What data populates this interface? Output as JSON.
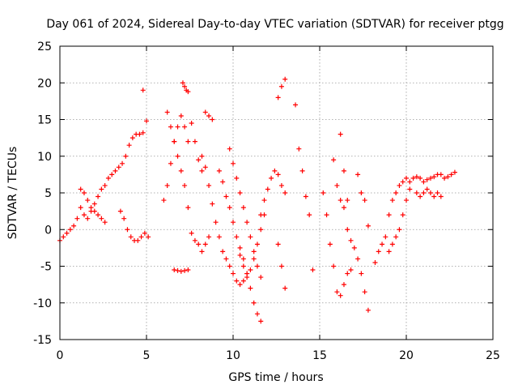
{
  "chart_data": {
    "type": "scatter",
    "title": "Day 061 of 2024, Sidereal Day-to-day VTEC variation (SDTVAR) for receiver ptgg",
    "xlabel": "GPS time / hours",
    "ylabel": "SDTVAR / TECUs",
    "xlim": [
      0,
      25
    ],
    "ylim": [
      -15,
      25
    ],
    "xticks": [
      "0",
      "5",
      "10",
      "15",
      "20",
      "25"
    ],
    "yticks": [
      "-15",
      "-10",
      "-5",
      "0",
      "5",
      "10",
      "15",
      "20",
      "25"
    ],
    "grid": true,
    "marker": "+",
    "color": "#ff0000",
    "series": [
      {
        "name": "seg1",
        "x": [
          0.0,
          0.2,
          0.4,
          0.6,
          0.8,
          1.0,
          1.2,
          1.4,
          1.6,
          1.8,
          2.0,
          2.2,
          2.4,
          2.6,
          2.8,
          3.0,
          3.2,
          3.4,
          3.6,
          3.8,
          4.0,
          4.2,
          4.4,
          4.6,
          4.8
        ],
        "y": [
          -1.5,
          -1.0,
          -0.5,
          0.0,
          0.5,
          1.5,
          3.0,
          2.0,
          1.5,
          2.5,
          3.5,
          4.5,
          5.5,
          6.0,
          7.0,
          7.5,
          8.0,
          8.5,
          9.0,
          10.0,
          11.5,
          12.5,
          13.0,
          13.0,
          13.2
        ]
      },
      {
        "name": "seg2",
        "x": [
          1.2,
          1.4,
          1.6,
          1.8,
          2.0,
          2.2,
          2.4,
          2.6
        ],
        "y": [
          5.5,
          5.0,
          4.0,
          3.0,
          2.5,
          2.0,
          1.5,
          1.0
        ]
      },
      {
        "name": "seg3",
        "x": [
          3.5,
          3.7,
          3.9,
          4.1,
          4.3,
          4.5,
          4.7,
          4.9,
          5.1
        ],
        "y": [
          2.5,
          1.5,
          0.0,
          -1.0,
          -1.5,
          -1.5,
          -1.0,
          -0.5,
          -1.0
        ]
      },
      {
        "name": "seg4",
        "x": [
          4.8,
          5.0
        ],
        "y": [
          19.0,
          14.8
        ]
      },
      {
        "name": "seg5",
        "x": [
          6.2,
          6.4,
          6.6,
          6.8,
          7.0,
          7.2,
          7.4,
          7.6,
          7.8,
          8.0,
          8.2,
          8.4,
          8.6
        ],
        "y": [
          16.0,
          14.0,
          12.0,
          10.0,
          8.0,
          6.0,
          3.0,
          -0.5,
          -1.5,
          -2.0,
          -3.0,
          -2.0,
          -1.0
        ]
      },
      {
        "name": "seg6",
        "x": [
          6.0,
          6.2,
          6.4,
          6.6,
          6.8,
          7.0,
          7.2,
          7.4
        ],
        "y": [
          4.0,
          6.0,
          9.0,
          12.0,
          14.0,
          15.5,
          14.0,
          12.0
        ]
      },
      {
        "name": "seg7",
        "x": [
          6.6,
          6.8,
          7.0,
          7.2,
          7.4
        ],
        "y": [
          -5.5,
          -5.6,
          -5.7,
          -5.6,
          -5.5
        ]
      },
      {
        "name": "seg8",
        "x": [
          7.1,
          7.2,
          7.3,
          7.4
        ],
        "y": [
          20.0,
          19.5,
          19.0,
          18.8
        ]
      },
      {
        "name": "seg9",
        "x": [
          7.6,
          7.8,
          8.0,
          8.2
        ],
        "y": [
          14.5,
          12.0,
          9.5,
          8.0
        ]
      },
      {
        "name": "seg10",
        "x": [
          8.2,
          8.4,
          8.6,
          8.8,
          9.0,
          9.2,
          9.4,
          9.6,
          9.8,
          10.0,
          10.2,
          10.4,
          10.6,
          10.8
        ],
        "y": [
          10.0,
          8.5,
          6.0,
          3.5,
          1.0,
          -1.0,
          -3.0,
          -4.0,
          -5.0,
          -6.0,
          -7.0,
          -7.5,
          -7.0,
          -6.5
        ]
      },
      {
        "name": "seg11",
        "x": [
          8.4,
          8.6,
          8.8
        ],
        "y": [
          16.0,
          15.5,
          15.0
        ]
      },
      {
        "name": "seg12",
        "x": [
          9.2,
          9.4,
          9.6,
          9.8,
          10.0,
          10.2,
          10.4,
          10.6,
          10.8,
          11.0,
          11.2,
          11.4,
          11.6
        ],
        "y": [
          8.0,
          6.5,
          4.5,
          3.0,
          1.0,
          -1.0,
          -2.5,
          -4.0,
          -6.0,
          -8.0,
          -10.0,
          -11.5,
          -12.5
        ]
      },
      {
        "name": "seg13",
        "x": [
          9.8,
          10.0,
          10.2,
          10.4,
          10.6,
          10.8,
          11.0,
          11.2,
          11.4,
          11.6
        ],
        "y": [
          11.0,
          9.0,
          7.0,
          5.0,
          3.0,
          1.0,
          -1.0,
          -3.0,
          -5.0,
          -6.5
        ]
      },
      {
        "name": "seg14",
        "x": [
          10.4,
          10.6,
          10.8,
          11.0,
          11.2,
          11.4,
          11.6,
          11.8
        ],
        "y": [
          -3.5,
          -5.0,
          -6.0,
          -5.5,
          -4.0,
          -2.0,
          0.0,
          2.0
        ]
      },
      {
        "name": "seg15",
        "x": [
          11.6,
          11.8,
          12.0,
          12.2,
          12.4,
          12.6,
          12.8,
          13.0
        ],
        "y": [
          2.0,
          4.0,
          5.5,
          7.0,
          8.0,
          7.5,
          6.0,
          5.0
        ]
      },
      {
        "name": "seg16",
        "x": [
          12.6,
          12.8,
          13.0
        ],
        "y": [
          18.0,
          19.5,
          20.5
        ]
      },
      {
        "name": "seg17",
        "x": [
          12.6,
          12.8,
          13.0
        ],
        "y": [
          -2.0,
          -5.0,
          -8.0
        ]
      },
      {
        "name": "seg18",
        "x": [
          13.6,
          13.8,
          14.0
        ],
        "y": [
          17.0,
          11.0,
          8.0
        ]
      },
      {
        "name": "seg19",
        "x": [
          14.2,
          14.4,
          14.6
        ],
        "y": [
          4.5,
          2.0,
          -5.5
        ]
      },
      {
        "name": "seg20",
        "x": [
          15.2,
          15.4,
          15.6,
          15.8,
          16.0,
          16.2,
          16.4,
          16.6,
          16.8
        ],
        "y": [
          5.0,
          2.0,
          -2.0,
          -5.0,
          -8.5,
          -9.0,
          -7.5,
          -6.0,
          -5.5
        ]
      },
      {
        "name": "seg21",
        "x": [
          15.8,
          16.0,
          16.2,
          16.4,
          16.6
        ],
        "y": [
          9.5,
          6.0,
          4.0,
          3.0,
          4.0
        ]
      },
      {
        "name": "seg22",
        "x": [
          16.2,
          16.4,
          16.6,
          16.8,
          17.0,
          17.2,
          17.4,
          17.6,
          17.8
        ],
        "y": [
          13.0,
          8.0,
          0.0,
          -1.5,
          -2.5,
          -4.0,
          -6.0,
          -8.5,
          -11.0
        ]
      },
      {
        "name": "seg23",
        "x": [
          17.2,
          17.4,
          17.6,
          17.8
        ],
        "y": [
          7.5,
          5.0,
          4.0,
          0.5
        ]
      },
      {
        "name": "seg24",
        "x": [
          18.2,
          18.4,
          18.6,
          18.8,
          19.0,
          19.2,
          19.4,
          19.6,
          19.8,
          20.0
        ],
        "y": [
          -4.5,
          -3.0,
          -2.0,
          -1.0,
          2.0,
          4.0,
          5.0,
          6.0,
          6.5,
          7.0
        ]
      },
      {
        "name": "seg25",
        "x": [
          19.0,
          19.2,
          19.4,
          19.6,
          19.8,
          20.0,
          20.2
        ],
        "y": [
          -3.0,
          -2.0,
          -1.0,
          0.0,
          2.0,
          4.0,
          5.5
        ]
      },
      {
        "name": "seg26",
        "x": [
          20.2,
          20.4,
          20.6,
          20.8,
          21.0,
          21.2,
          21.4,
          21.6,
          21.8,
          22.0,
          22.2,
          22.4,
          22.6,
          22.8
        ],
        "y": [
          6.5,
          7.0,
          7.2,
          7.0,
          6.5,
          6.8,
          7.0,
          7.2,
          7.5,
          7.5,
          7.0,
          7.2,
          7.5,
          7.8
        ]
      },
      {
        "name": "seg27",
        "x": [
          20.6,
          20.8,
          21.0,
          21.2,
          21.4,
          21.6,
          21.8,
          22.0
        ],
        "y": [
          5.0,
          4.5,
          5.0,
          5.5,
          5.0,
          4.5,
          5.0,
          4.5
        ]
      }
    ]
  }
}
